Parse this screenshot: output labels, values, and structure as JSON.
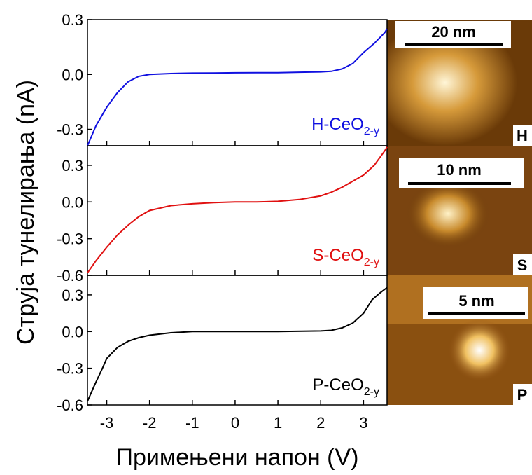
{
  "chart_data": [
    {
      "type": "line",
      "xlim": [
        -3.45,
        3.55
      ],
      "xticks": [
        -3,
        -2,
        -1,
        0,
        1,
        2,
        3
      ],
      "ylim": [
        -0.39,
        0.3
      ],
      "yticks": [
        -0.3,
        {
          "value": 0,
          "label": "0.0"
        },
        0.3
      ],
      "x": [
        -3.45,
        -3.25,
        -3.0,
        -2.75,
        -2.5,
        -2.25,
        -2.0,
        -1.5,
        -1.0,
        -0.5,
        0.0,
        0.5,
        1.0,
        1.5,
        2.0,
        2.25,
        2.5,
        2.75,
        3.0,
        3.25,
        3.5,
        3.55
      ],
      "series": [
        {
          "name": "H-CeO",
          "name_sub": "2-y",
          "color": "#1010e0",
          "values": [
            -0.39,
            -0.28,
            -0.18,
            -0.1,
            -0.04,
            -0.01,
            0.0,
            0.005,
            0.007,
            0.008,
            0.009,
            0.01,
            0.01,
            0.012,
            0.014,
            0.017,
            0.03,
            0.06,
            0.12,
            0.17,
            0.23,
            0.25
          ]
        }
      ],
      "image": {
        "scale_bar": "20 nm",
        "label": "H"
      }
    },
    {
      "type": "line",
      "xlim": [
        -3.45,
        3.55
      ],
      "xticks": [
        -3,
        -2,
        -1,
        0,
        1,
        2,
        3
      ],
      "ylim": [
        -0.6,
        0.46
      ],
      "yticks": [
        -0.6,
        -0.3,
        {
          "value": 0,
          "label": "0.0"
        },
        0.3
      ],
      "ylabel": "Струја тунелирања (nA)",
      "x": [
        -3.45,
        -3.25,
        -3.0,
        -2.75,
        -2.5,
        -2.25,
        -2.0,
        -1.75,
        -1.5,
        -1.0,
        -0.5,
        0.0,
        0.5,
        1.0,
        1.5,
        2.0,
        2.25,
        2.5,
        2.75,
        3.0,
        3.25,
        3.5,
        3.55
      ],
      "series": [
        {
          "name": "S-CeO",
          "name_sub": "2-y",
          "color": "#e01010",
          "values": [
            -0.58,
            -0.48,
            -0.37,
            -0.27,
            -0.19,
            -0.12,
            -0.07,
            -0.05,
            -0.03,
            -0.015,
            -0.005,
            0.0,
            0.0,
            0.005,
            0.02,
            0.05,
            0.08,
            0.12,
            0.17,
            0.22,
            0.3,
            0.42,
            0.45
          ]
        }
      ],
      "image": {
        "scale_bar": "10 nm",
        "label": "S"
      }
    },
    {
      "type": "line",
      "xlim": [
        -3.45,
        3.55
      ],
      "xticks": [
        -3,
        -2,
        -1,
        0,
        1,
        2,
        3
      ],
      "ylim": [
        -0.6,
        0.46
      ],
      "yticks": [
        -0.6,
        -0.3,
        {
          "value": 0,
          "label": "0.0"
        },
        0.3
      ],
      "xlabel": "Примењени напон (V)",
      "x": [
        -3.45,
        -3.3,
        -3.1,
        -3.0,
        -2.75,
        -2.5,
        -2.25,
        -2.0,
        -1.5,
        -1.0,
        0.0,
        1.0,
        2.0,
        2.25,
        2.5,
        2.75,
        3.0,
        3.2,
        3.4,
        3.55
      ],
      "series": [
        {
          "name": "P-CeO",
          "name_sub": "2-y",
          "color": "#000000",
          "values": [
            -0.57,
            -0.45,
            -0.3,
            -0.22,
            -0.13,
            -0.08,
            -0.05,
            -0.03,
            -0.01,
            0.0,
            0.0,
            0.0,
            0.005,
            0.01,
            0.03,
            0.07,
            0.15,
            0.26,
            0.32,
            0.36
          ]
        }
      ],
      "image": {
        "scale_bar": "5 nm",
        "label": "P"
      }
    }
  ]
}
